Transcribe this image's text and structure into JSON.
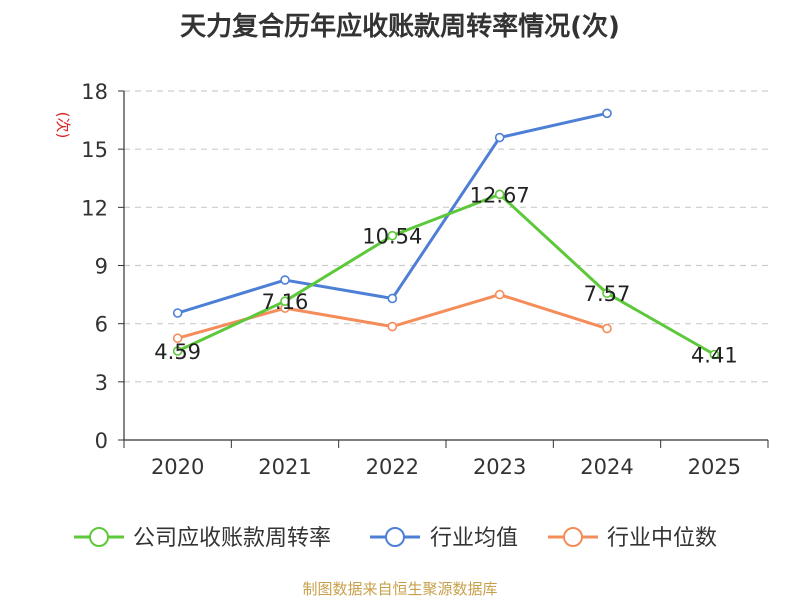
{
  "title": "天力复合历年应收账款周转率情况(次)",
  "source": "制图数据来自恒生聚源数据库",
  "chart_data": {
    "type": "line",
    "title": "天力复合历年应收账款周转率情况(次)",
    "xlabel": "",
    "ylabel": "(次)",
    "ylim": [
      0,
      18
    ],
    "yticks": [
      0,
      3,
      6,
      9,
      12,
      15,
      18
    ],
    "categories": [
      "2020",
      "2021",
      "2022",
      "2023",
      "2024",
      "2025"
    ],
    "legend_position": "bottom-center",
    "grid": true,
    "series": [
      {
        "name": "公司应收账款周转率",
        "color": "#5cc83a",
        "values": [
          4.59,
          7.16,
          10.54,
          12.67,
          7.57,
          4.41
        ],
        "labels": [
          "4.59",
          "7.16",
          "10.54",
          "12.67",
          "7.57",
          "4.41"
        ]
      },
      {
        "name": "行业均值",
        "color": "#4e7fd6",
        "values": [
          6.55,
          8.25,
          7.3,
          15.6,
          16.85,
          null
        ]
      },
      {
        "name": "行业中位数",
        "color": "#f58d5b",
        "values": [
          5.25,
          6.8,
          5.85,
          7.5,
          5.75,
          null
        ]
      }
    ]
  }
}
